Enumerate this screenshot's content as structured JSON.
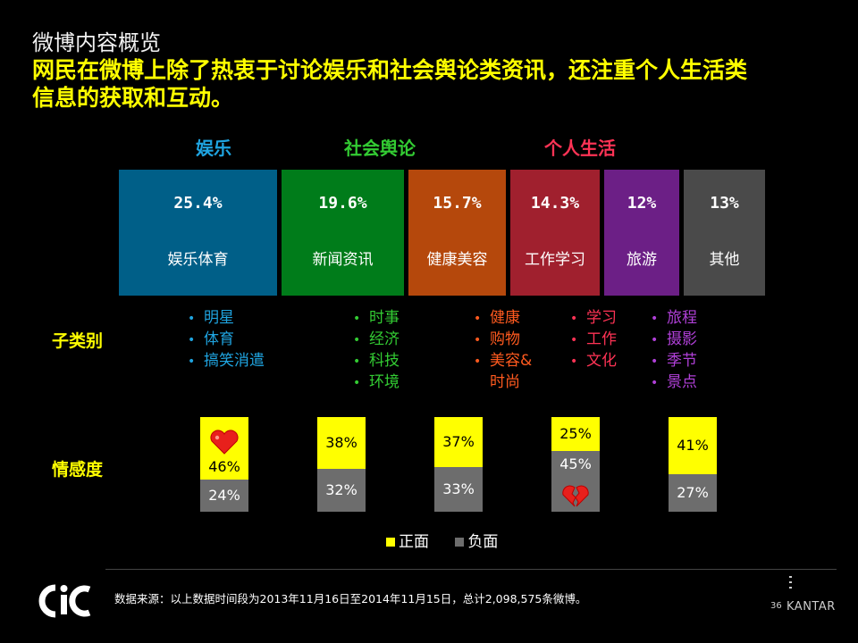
{
  "page": {
    "title": "微博内容概览",
    "headline_line1": "网民在微博上除了热衷于讨论娱乐和社会舆论类资讯，还注重个人生活类",
    "headline_line2": "信息的获取和互动。"
  },
  "categories": [
    {
      "name": "娱乐",
      "color": "#1fa4e0"
    },
    {
      "name": "社会舆论",
      "color": "#33cc33"
    },
    {
      "name": "个人生活",
      "color": "#ff3355"
    }
  ],
  "chart_data": [
    {
      "type": "bar",
      "title": "",
      "categories": [
        "娱乐体育",
        "新闻资讯",
        "健康美容",
        "工作学习",
        "旅游",
        "其他"
      ],
      "values": [
        25.4,
        19.6,
        15.7,
        14.3,
        12,
        13
      ],
      "value_labels": [
        "25.4%",
        "19.6%",
        "15.7%",
        "14.3%",
        "12%",
        "13%"
      ],
      "colors": [
        "#005f88",
        "#007c1a",
        "#b5480c",
        "#a0202e",
        "#6c1f86",
        "#4a4a4a"
      ],
      "group": [
        "娱乐",
        "社会舆论",
        "个人生活",
        "个人生活",
        "个人生活",
        ""
      ]
    },
    {
      "type": "bar",
      "stacked": true,
      "title": "",
      "categories": [
        "娱乐体育",
        "新闻资讯",
        "健康美容",
        "工作学习",
        "旅游"
      ],
      "series": [
        {
          "name": "正面",
          "values": [
            46,
            38,
            37,
            25,
            41
          ],
          "labels": [
            "46%",
            "38%",
            "37%",
            "25%",
            "41%"
          ],
          "color": "#ffff00"
        },
        {
          "name": "负面",
          "values": [
            24,
            32,
            33,
            45,
            27
          ],
          "labels": [
            "24%",
            "32%",
            "33%",
            "45%",
            "27%"
          ],
          "color": "#6d6d6d"
        }
      ],
      "annotations": [
        {
          "category": "娱乐体育",
          "icon": "heart-icon"
        },
        {
          "category": "工作学习",
          "icon": "broken-heart-icon"
        }
      ],
      "legend": "bottom"
    }
  ],
  "rows": {
    "subcategory_label": "子类别",
    "sentiment_label": "情感度"
  },
  "subcategories": [
    {
      "color": "#1fa4e0",
      "items": [
        "明星",
        "体育",
        "搞笑消遣"
      ]
    },
    {
      "color": "#33cc33",
      "items": [
        "时事",
        "经济",
        "科技",
        "环境"
      ]
    },
    {
      "color": "#ff5a1f",
      "items": [
        "健康",
        "购物",
        "美容&",
        "时尚"
      ]
    },
    {
      "color": "#ff3355",
      "items": [
        "学习",
        "工作",
        "文化"
      ]
    },
    {
      "color": "#b040d8",
      "items": [
        "旅程",
        "摄影",
        "季节",
        "景点"
      ]
    }
  ],
  "legend": {
    "positive": "正面",
    "negative": "负面"
  },
  "footer": {
    "source": "数据来源：以上数据时间段为2013年11月16日至2014年11月15日，总计2,098,575条微博。",
    "page_number": "36",
    "brand": "KANTAR",
    "logo_text": "CIC"
  }
}
